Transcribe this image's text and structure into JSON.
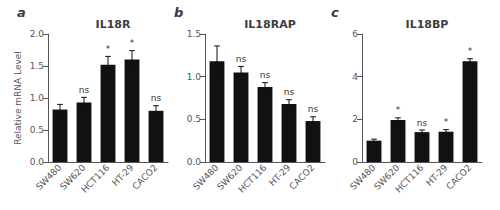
{
  "chart_data": [
    {
      "type": "bar",
      "panel_label": "a",
      "title": "IL18R",
      "ylabel": "Relative mRNA Level",
      "categories": [
        "SW480",
        "SW620",
        "HCT116",
        "HT-29",
        "CACO2"
      ],
      "values": [
        0.82,
        0.93,
        1.52,
        1.6,
        0.8
      ],
      "errors": [
        0.08,
        0.08,
        0.13,
        0.14,
        0.08
      ],
      "annotations": [
        null,
        "ns",
        "*",
        "*",
        "ns"
      ],
      "color": "#111111",
      "ylim": [
        0,
        2.0
      ],
      "yticks": [
        {
          "value": 0,
          "label": "0.0"
        },
        0.5,
        {
          "value": 1,
          "label": "1.0"
        },
        1.5,
        {
          "value": 2,
          "label": "2.0"
        }
      ],
      "grid": false
    },
    {
      "type": "bar",
      "panel_label": "b",
      "title": "IL18RAP",
      "categories": [
        "SW480",
        "SW620",
        "HCT116",
        "HT-29",
        "CACO2"
      ],
      "values": [
        1.18,
        1.05,
        0.88,
        0.68,
        0.48
      ],
      "errors": [
        0.18,
        0.07,
        0.05,
        0.05,
        0.05
      ],
      "annotations": [
        null,
        "ns",
        "ns",
        "ns",
        "ns"
      ],
      "color": "#111111",
      "ylim": [
        0,
        1.5
      ],
      "yticks": [
        {
          "value": 0,
          "label": "0.0"
        },
        0.5,
        {
          "value": 1,
          "label": "1.0"
        },
        1.5
      ],
      "grid": false
    },
    {
      "type": "bar",
      "panel_label": "c",
      "title": "IL18BP",
      "categories": [
        "SW480",
        "SW620",
        "HCT116",
        "HT-29",
        "CACO2"
      ],
      "values": [
        1.0,
        1.97,
        1.4,
        1.42,
        4.72
      ],
      "errors": [
        0.07,
        0.1,
        0.1,
        0.1,
        0.12
      ],
      "annotations": [
        null,
        "*",
        "ns",
        "*",
        "*"
      ],
      "color": "#111111",
      "ylim": [
        0,
        6
      ],
      "yticks": [
        0,
        2,
        4,
        6
      ],
      "grid": false
    }
  ]
}
